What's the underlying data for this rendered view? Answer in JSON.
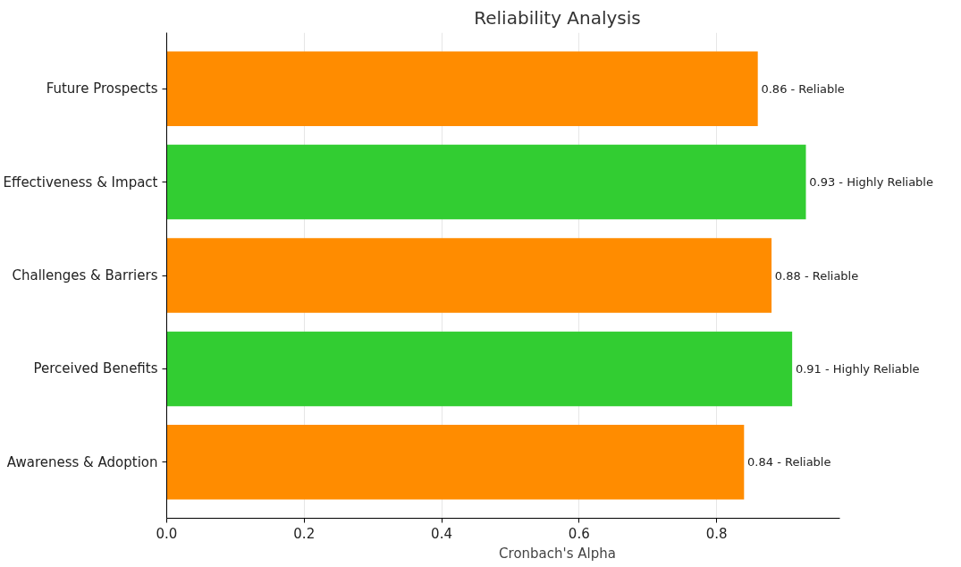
{
  "chart_data": {
    "type": "bar",
    "orientation": "horizontal",
    "title": "Reliability Analysis",
    "xlabel": "Cronbach's Alpha",
    "categories": [
      "Future Prospects",
      "Effectiveness & Impact",
      "Challenges & Barriers",
      "Perceived Benefits",
      "Awareness & Adoption"
    ],
    "values": [
      0.86,
      0.93,
      0.88,
      0.91,
      0.84
    ],
    "colors": [
      "#ff8c00",
      "#32cd32",
      "#ff8c00",
      "#32cd32",
      "#ff8c00"
    ],
    "value_labels": [
      "0.86 - Reliable",
      "0.93 - Highly Reliable",
      "0.88 - Reliable",
      "0.91 - Highly Reliable",
      "0.84 - Reliable"
    ],
    "xlim": [
      0,
      0.98
    ],
    "xticks": [
      {
        "value": 0,
        "label": "0.0"
      },
      {
        "value": 0.2,
        "label": "0.2"
      },
      {
        "value": 0.4,
        "label": "0.4"
      },
      {
        "value": 0.6,
        "label": "0.6"
      },
      {
        "value": 0.8,
        "label": "0.8"
      }
    ],
    "grid": "x"
  }
}
